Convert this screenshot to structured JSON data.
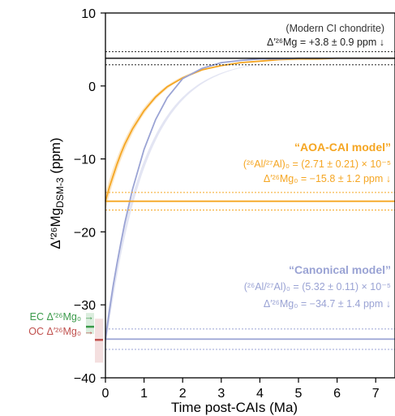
{
  "chart_data": {
    "type": "line",
    "xlabel": "Time post-CAIs (Ma)",
    "ylabel": "Δ′²⁶Mg",
    "ylabel_sub": "DSM-3",
    "ylabel_unit": " (ppm)",
    "xlim": [
      0,
      7.5
    ],
    "ylim": [
      -40,
      10
    ],
    "x_ticks": [
      0,
      1,
      2,
      3,
      4,
      5,
      6,
      7
    ],
    "y_ticks": [
      -40,
      -30,
      -20,
      -10,
      0,
      10
    ],
    "x_tick_labels": [
      "0",
      "1",
      "2",
      "3",
      "4",
      "5",
      "6",
      "7"
    ],
    "y_tick_labels": [
      "−40",
      "−30",
      "−20",
      "−10",
      "0",
      "10"
    ],
    "grid": false,
    "colors": {
      "aoa": "#f5a623",
      "canonical": "#9aa3d4",
      "modern": "#222222",
      "ec": "#3a9a4a",
      "oc": "#c0504d"
    },
    "series": [
      {
        "key": "aoa",
        "initial": -15.8,
        "initial_err": 1.2,
        "final": 3.8,
        "tau": 1.0,
        "x": [
          0,
          0.1,
          0.2,
          0.3,
          0.4,
          0.5,
          0.7,
          1.0,
          1.3,
          1.6,
          2.0,
          2.5,
          3.0,
          3.5,
          4.0,
          4.5,
          5.0,
          5.5,
          6.0,
          6.5,
          7.0,
          7.5
        ],
        "y": [
          -15.8,
          -13.9,
          -12.3,
          -10.7,
          -9.3,
          -8.0,
          -5.9,
          -3.4,
          -1.5,
          -0.1,
          1.1,
          2.2,
          2.8,
          3.2,
          3.4,
          3.6,
          3.7,
          3.7,
          3.8,
          3.8,
          3.8,
          3.8
        ]
      },
      {
        "key": "canonical",
        "initial": -34.7,
        "initial_err": 1.4,
        "final": 3.8,
        "tau": 1.03,
        "x": [
          0,
          0.1,
          0.2,
          0.3,
          0.4,
          0.5,
          0.7,
          1.0,
          1.3,
          1.6,
          2.0,
          2.5,
          3.0,
          3.5,
          4.0,
          4.5,
          5.0,
          5.5,
          6.0,
          6.5,
          7.0,
          7.5
        ],
        "y": [
          -34.7,
          -30.9,
          -27.4,
          -24.3,
          -21.5,
          -18.8,
          -14.2,
          -8.7,
          -4.6,
          -1.6,
          1.0,
          2.4,
          3.2,
          3.5,
          3.7,
          3.7,
          3.8,
          3.8,
          3.8,
          3.8,
          3.8,
          3.8
        ]
      }
    ],
    "modern": {
      "value": 3.8,
      "err": 0.9
    },
    "ec_value": -33.0,
    "oc_value": -34.8
  },
  "annotations": {
    "modern_title": "(Modern CI chondrite)",
    "modern_value": "Δ′²⁶Mg = +3.8 ± 0.9 ppm ↓",
    "aoa_title": "“AOA-CAI model”",
    "aoa_ratio": "(²⁶Al/²⁷Al)₀ = (2.71 ± 0.21) × 10⁻⁵",
    "aoa_value": "Δ′²⁶Mg₀ = −15.8 ± 1.2 ppm ↓",
    "canonical_title": "“Canonical model”",
    "canonical_ratio": "(²⁶Al/²⁷Al)₀ = (5.32 ± 0.11) × 10⁻⁵",
    "canonical_value": "Δ′²⁶Mg₀ = −34.7 ± 1.4 ppm ↓",
    "ec_label": "EC Δ′²⁶Mg₀ →",
    "oc_label": "OC Δ′²⁶Mg₀ →"
  }
}
